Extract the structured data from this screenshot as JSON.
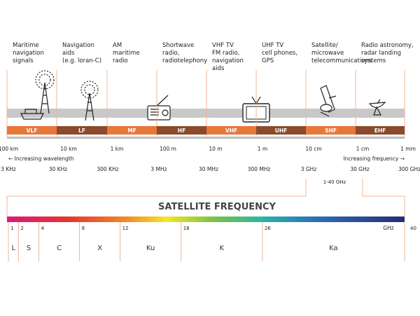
{
  "columns": [
    {
      "label_lines": [
        "Maritime",
        "navigation",
        "signals"
      ],
      "band": "VLF"
    },
    {
      "label_lines": [
        "Navigation",
        "aids",
        "(e.g. loran-C)"
      ],
      "band": "LF"
    },
    {
      "label_lines": [
        "AM",
        "maritime",
        "radio"
      ],
      "band": "MF"
    },
    {
      "label_lines": [
        "Shortwave",
        "radio,",
        "radiotelephony"
      ],
      "band": "HF"
    },
    {
      "label_lines": [
        "VHF TV",
        "FM radio,",
        "navigation",
        "aids"
      ],
      "band": "VHF"
    },
    {
      "label_lines": [
        "UHF TV",
        "cell phones,",
        "GPS"
      ],
      "band": "UHF"
    },
    {
      "label_lines": [
        "Satellite/",
        "microwave",
        "telecommunications"
      ],
      "band": "SHF"
    },
    {
      "label_lines": [
        "Radio astronomy,",
        "radar landing",
        "systems"
      ],
      "band": "EHF"
    }
  ],
  "wavelengths": [
    "100 km",
    "10 km",
    "1 km",
    "100 m",
    "10 m",
    "1 m",
    "10 cm",
    "1 cm",
    "1 mm"
  ],
  "wavelength_note": "← Increasing wavelength",
  "frequencies": [
    "3 KHz",
    "30 KHz",
    "300 KHz",
    "3 MHz",
    "30 MHz",
    "300 MHz",
    "3 GHz",
    "30 GHz",
    "300 GHz"
  ],
  "frequency_note": "Increasing frequency →",
  "range_label": "1-40 GHz",
  "satellite": {
    "title": "SATELLITE FREQUENCY",
    "unit": "GHz",
    "ticks": [
      1,
      2,
      4,
      8,
      12,
      18,
      26,
      40
    ],
    "bands": [
      "L",
      "S",
      "C",
      "X",
      "Ku",
      "K",
      "Ka"
    ]
  }
}
